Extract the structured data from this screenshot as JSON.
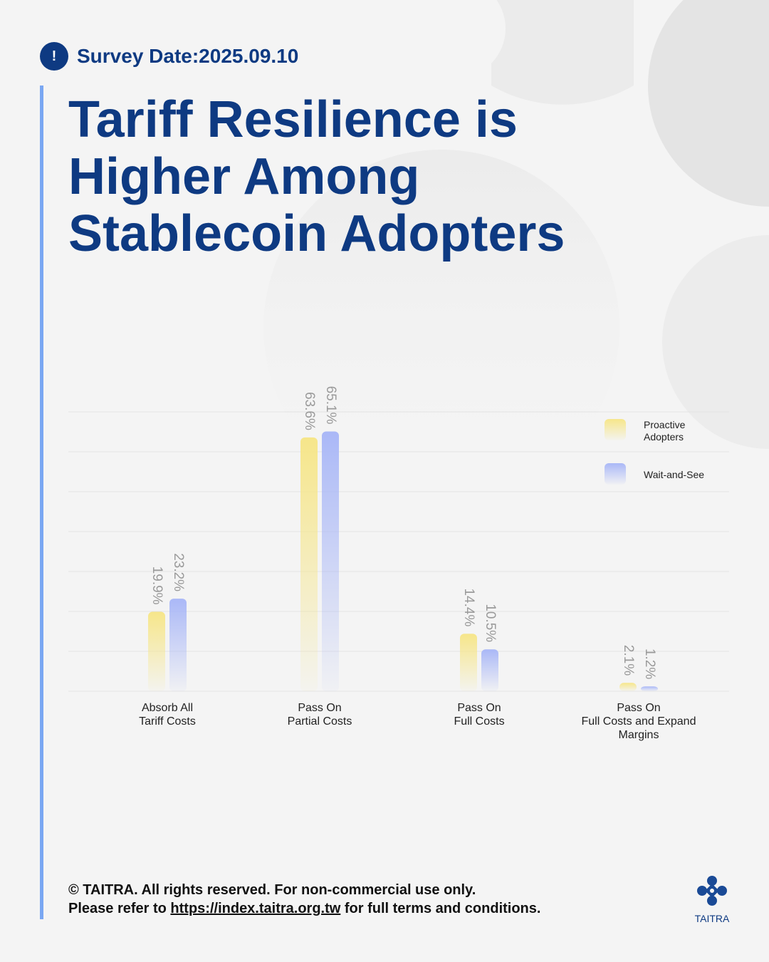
{
  "header": {
    "badge_icon": "exclamation-icon",
    "survey_date": "Survey Date:2025.09.10"
  },
  "title_lines": [
    "Tariff Resilience is",
    "Higher Among",
    "Stablecoin Adopters"
  ],
  "colors": {
    "primary": "#0e3a82",
    "accent_bar": "#7aa7f2",
    "proactive": "#f6e68a",
    "wait_and_see": "#aab8f7"
  },
  "chart_data": {
    "type": "bar",
    "categories": [
      [
        "Absorb All",
        "Tariff Costs"
      ],
      [
        "Pass On",
        "Partial Costs"
      ],
      [
        "Pass On",
        "Full Costs"
      ],
      [
        "Pass On",
        "Full Costs and Expand",
        "Margins"
      ]
    ],
    "series": [
      {
        "name": "Proactive Adopters",
        "legend_lines": [
          "Proactive",
          "Adopters"
        ],
        "values": [
          19.9,
          63.6,
          14.4,
          2.1
        ],
        "labels": [
          "19.9%",
          "63.6%",
          "14.4%",
          "2.1%"
        ]
      },
      {
        "name": "Wait-and-See",
        "legend_lines": [
          "Wait-and-See"
        ],
        "values": [
          23.2,
          65.1,
          10.5,
          1.2
        ],
        "labels": [
          "23.2%",
          "65.1%",
          "10.5%",
          "1.2%"
        ]
      }
    ],
    "ylim": [
      0,
      70
    ],
    "grid": true,
    "legend": "top-right"
  },
  "footer": {
    "line1": "© TAITRA. All rights reserved. For non-commercial use only.",
    "line2_prefix": "Please refer to ",
    "link_text": "https://index.taitra.org.tw",
    "line2_suffix": " for full terms and conditions."
  },
  "logo": {
    "icon": "taitra-logo-icon",
    "text": "TAITRA"
  }
}
